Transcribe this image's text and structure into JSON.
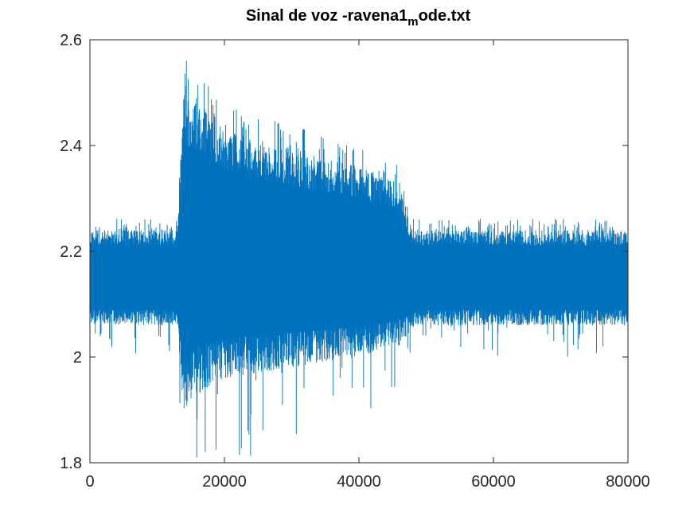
{
  "chart_data": {
    "type": "line",
    "title": {
      "main": "Sinal de voz -ravena1",
      "subscript": "m",
      "suffix": "ode.txt"
    },
    "xlabel": "",
    "ylabel": "",
    "xlim": [
      0,
      80000
    ],
    "ylim": [
      1.8,
      2.6
    ],
    "x_ticks": [
      0,
      20000,
      40000,
      60000,
      80000
    ],
    "x_tick_labels": [
      "0",
      "20000",
      "40000",
      "60000",
      "80000"
    ],
    "y_ticks": [
      1.8,
      2.0,
      2.2,
      2.4,
      2.6
    ],
    "y_tick_labels": [
      "1.8",
      "2",
      "2.2",
      "2.4",
      "2.6"
    ],
    "grid": false,
    "legend": "none",
    "series": [
      {
        "color": "#0072bd",
        "envelope": [
          {
            "x": 0,
            "upper": 2.24,
            "lower": 2.06
          },
          {
            "x": 13000,
            "upper": 2.24,
            "lower": 2.06
          },
          {
            "x": 13800,
            "upper": 2.5,
            "lower": 1.9
          },
          {
            "x": 16000,
            "upper": 2.48,
            "lower": 1.93
          },
          {
            "x": 20000,
            "upper": 2.43,
            "lower": 1.96
          },
          {
            "x": 30000,
            "upper": 2.39,
            "lower": 1.98
          },
          {
            "x": 40000,
            "upper": 2.36,
            "lower": 2.0
          },
          {
            "x": 46000,
            "upper": 2.33,
            "lower": 2.02
          },
          {
            "x": 47800,
            "upper": 2.25,
            "lower": 2.05
          },
          {
            "x": 48500,
            "upper": 2.24,
            "lower": 2.06
          },
          {
            "x": 80000,
            "upper": 2.24,
            "lower": 2.06
          }
        ]
      }
    ]
  }
}
